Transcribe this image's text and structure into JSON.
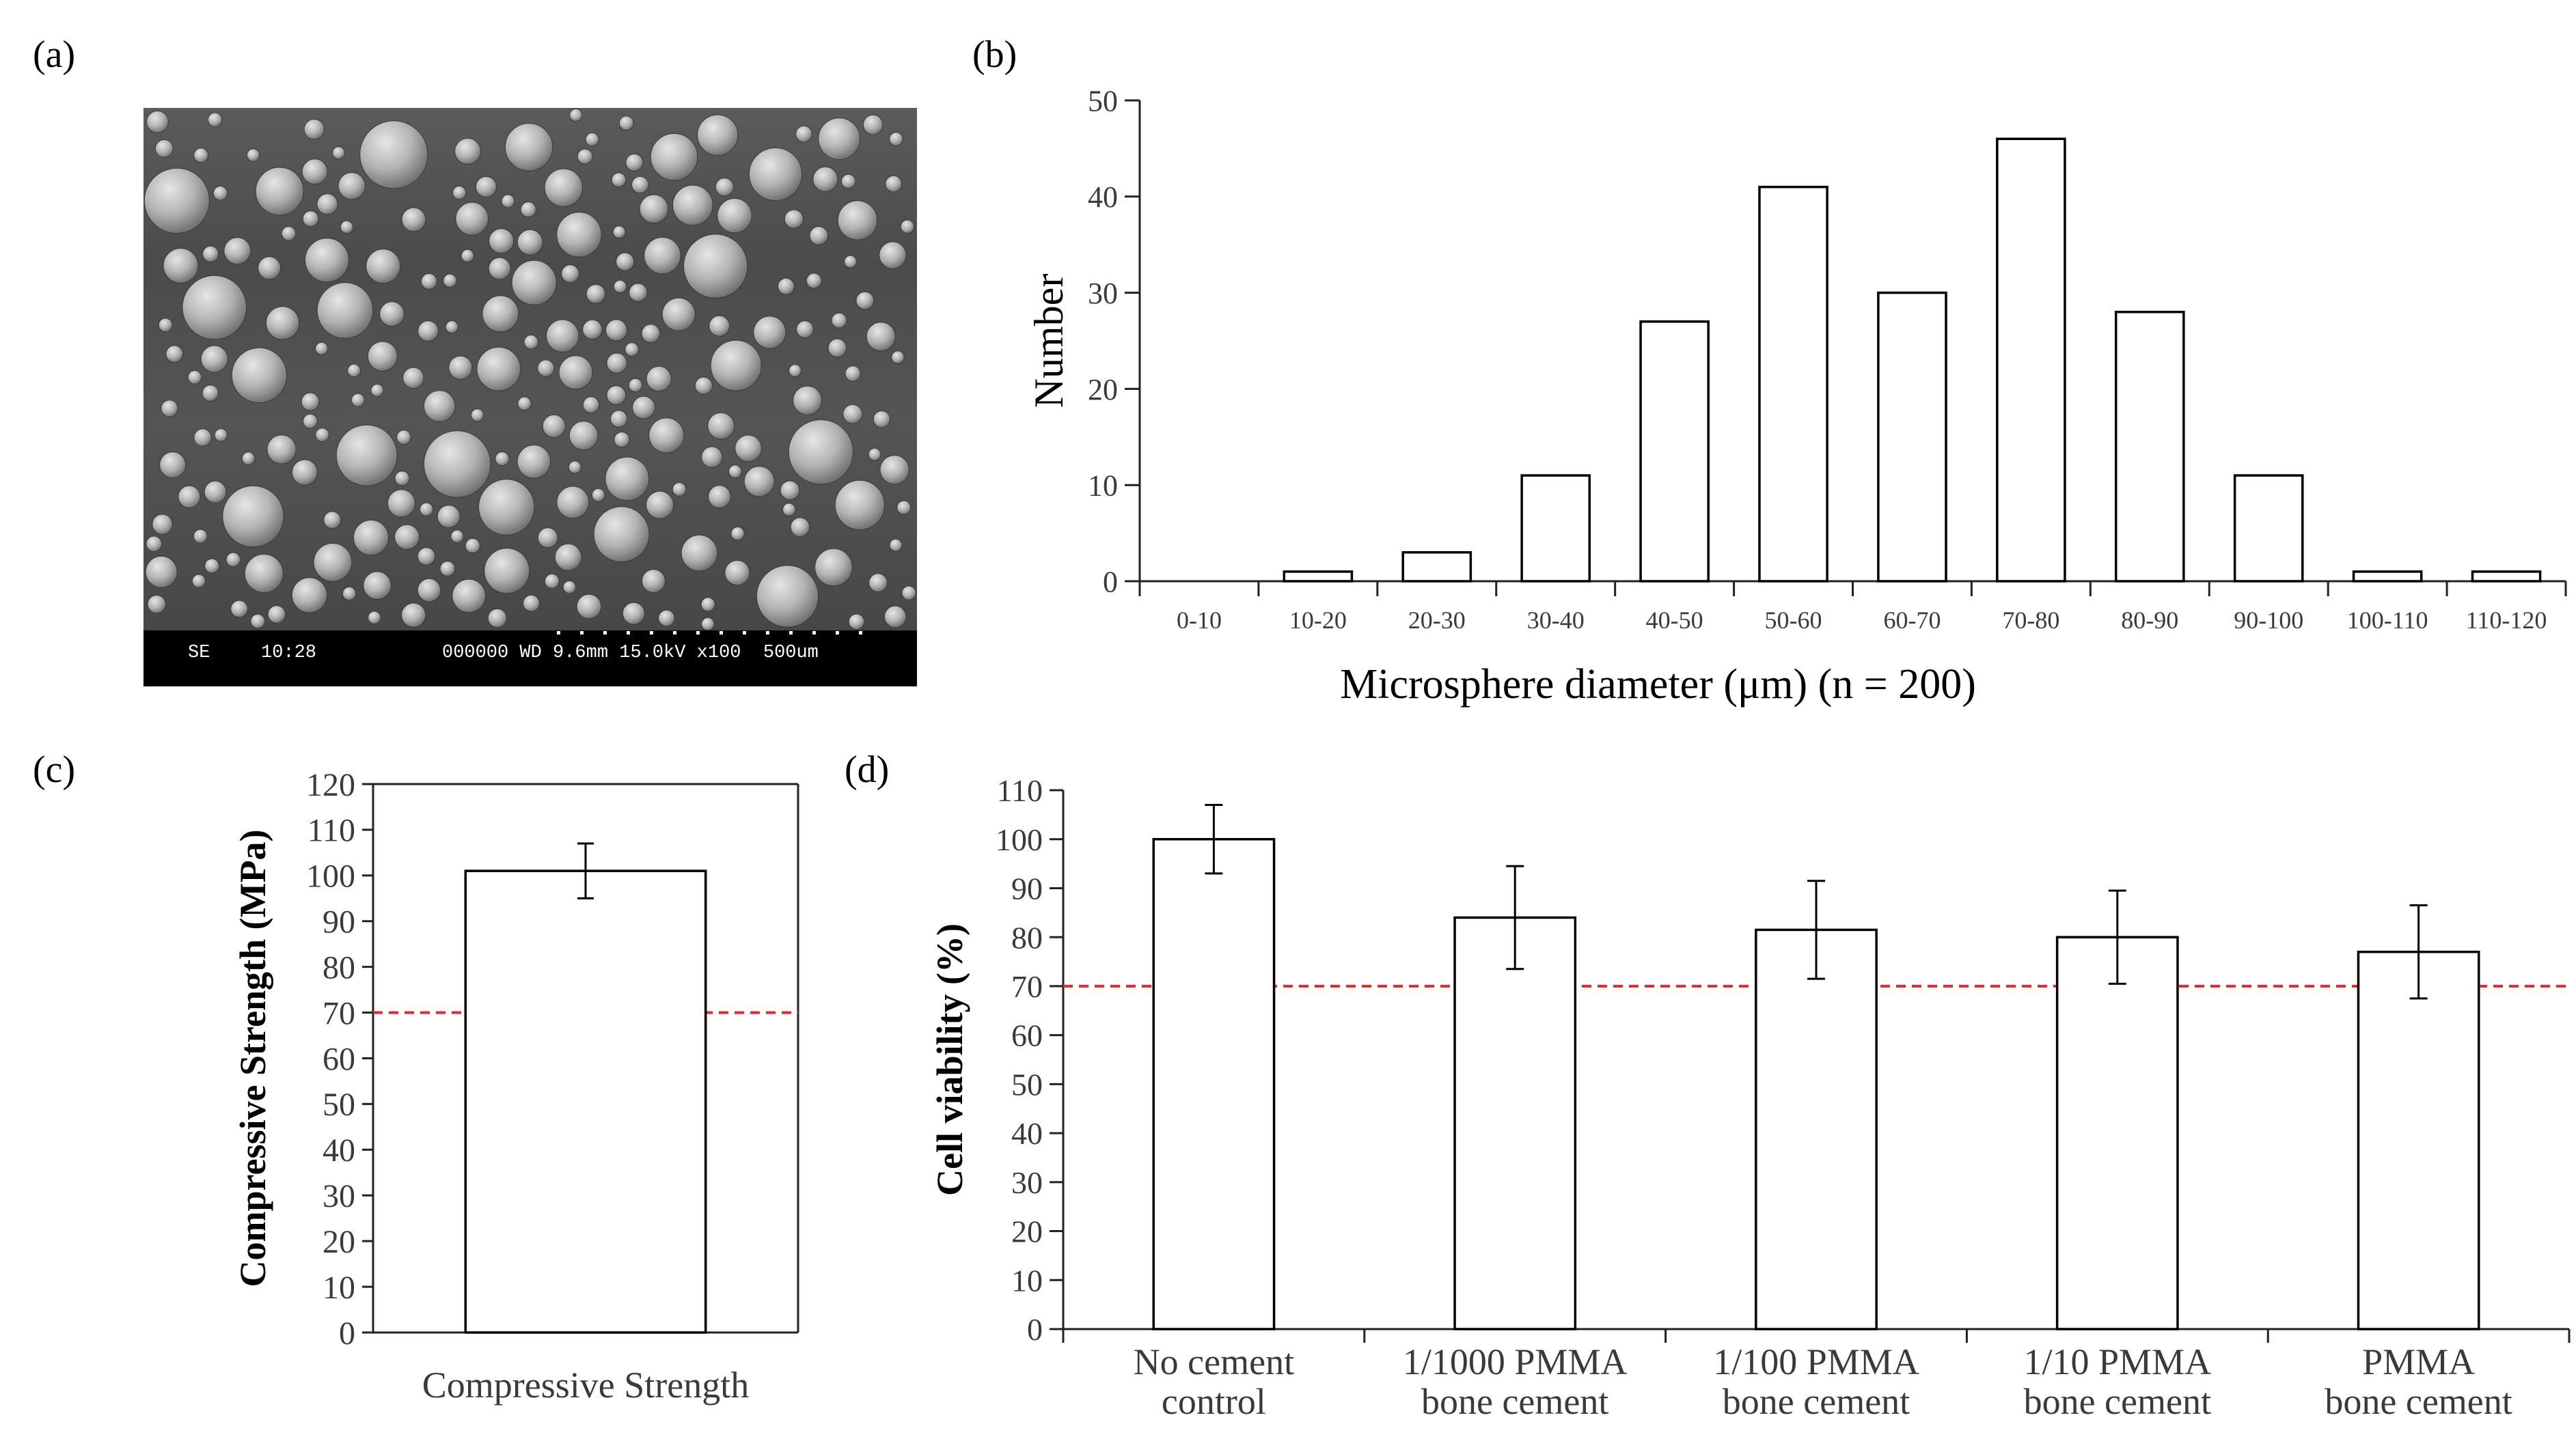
{
  "figure": {
    "panel_labels": [
      "(a)",
      "(b)",
      "(c)",
      "(d)"
    ],
    "sem": {
      "info_bar": {
        "mode": "SE",
        "time": "10:28",
        "details": "000000 WD 9.6mm 15.0kV x100  500um"
      }
    }
  },
  "chart_data": [
    {
      "panel": "(b)",
      "type": "bar",
      "title": "",
      "xlabel": "Microsphere diameter (μm) (n = 200)",
      "ylabel": "Number",
      "ylim": [
        0,
        50
      ],
      "yticks": [
        0,
        10,
        20,
        30,
        40,
        50
      ],
      "categories": [
        "0-10",
        "10-20",
        "20-30",
        "30-40",
        "40-50",
        "50-60",
        "60-70",
        "70-80",
        "80-90",
        "90-100",
        "100-110",
        "110-120"
      ],
      "values": [
        0,
        1,
        3,
        11,
        27,
        41,
        30,
        46,
        28,
        11,
        1,
        1
      ],
      "grid": false
    },
    {
      "panel": "(c)",
      "type": "bar",
      "title": "",
      "xlabel": "",
      "ylabel": "Compressive Strength (MPa)",
      "ylim": [
        0,
        120
      ],
      "yticks": [
        0,
        10,
        20,
        30,
        40,
        50,
        60,
        70,
        80,
        90,
        100,
        110,
        120
      ],
      "categories": [
        "Compressive Strength"
      ],
      "values": [
        101
      ],
      "errors": [
        6
      ],
      "reference_line": 70,
      "reference_color": "#e8262b",
      "grid": false
    },
    {
      "panel": "(d)",
      "type": "bar",
      "title": "",
      "xlabel": "",
      "ylabel": "Cell viability (%)",
      "ylim": [
        0,
        110
      ],
      "yticks": [
        0,
        10,
        20,
        30,
        40,
        50,
        60,
        70,
        80,
        90,
        100,
        110
      ],
      "categories": [
        [
          "No cement",
          "control"
        ],
        [
          "1/1000 PMMA",
          "bone cement"
        ],
        [
          "1/100 PMMA",
          "bone cement"
        ],
        [
          "1/10 PMMA",
          "bone cement"
        ],
        [
          "PMMA",
          "bone cement"
        ]
      ],
      "values": [
        100,
        84,
        81.5,
        80,
        77
      ],
      "errors": [
        7,
        10.5,
        10,
        9.5,
        9.5
      ],
      "reference_line": 70,
      "reference_color": "#e8262b",
      "grid": false
    }
  ]
}
